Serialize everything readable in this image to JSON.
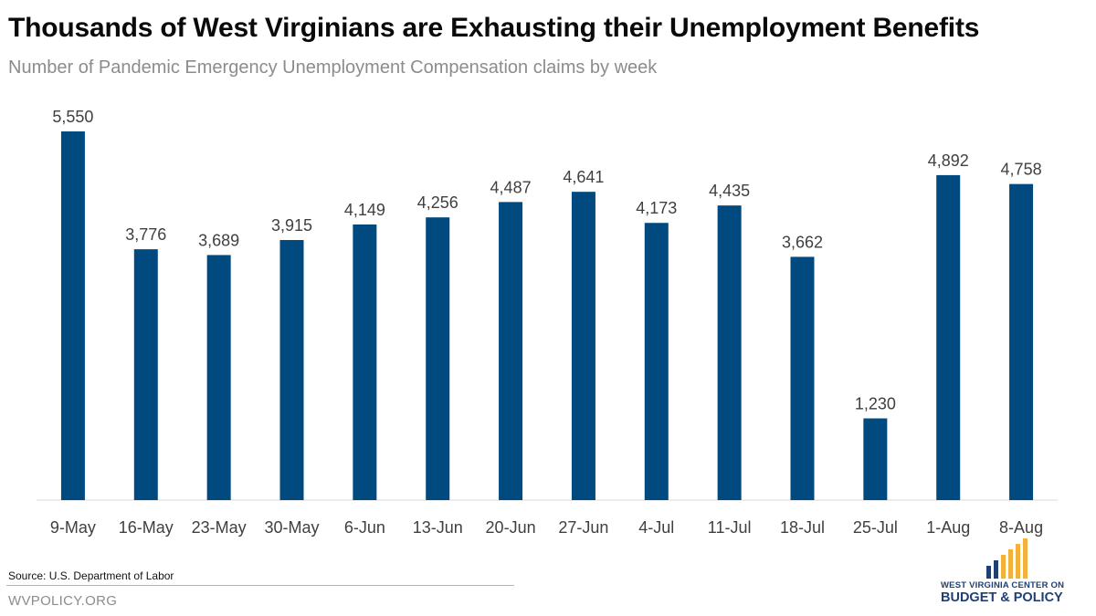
{
  "header": {
    "title": "Thousands of West Virginians are Exhausting their Unemployment Benefits",
    "subtitle": "Number of Pandemic Emergency Unemployment Compensation claims by week"
  },
  "footer": {
    "source": "Source: U.S. Department  of Labor",
    "site": "WVPOLICY.ORG"
  },
  "logo": {
    "line1": "WEST VIRGINIA CENTER ON",
    "line2": "BUDGET & POLICY",
    "colors": {
      "navy": "#1f3f72",
      "gold": "#f2b13a"
    }
  },
  "colors": {
    "bar": "#004a80",
    "axis": "#d9d9d9",
    "label": "#404040"
  },
  "chart_data": {
    "type": "bar",
    "title": "Thousands of West Virginians are Exhausting their Unemployment Benefits",
    "subtitle": "Number of Pandemic Emergency Unemployment Compensation claims by week",
    "xlabel": "",
    "ylabel": "",
    "categories": [
      "9-May",
      "16-May",
      "23-May",
      "30-May",
      "6-Jun",
      "13-Jun",
      "20-Jun",
      "27-Jun",
      "4-Jul",
      "11-Jul",
      "18-Jul",
      "25-Jul",
      "1-Aug",
      "8-Aug"
    ],
    "values": [
      5550,
      3776,
      3689,
      3915,
      4149,
      4256,
      4487,
      4641,
      4173,
      4435,
      3662,
      1230,
      4892,
      4758
    ],
    "data_labels": [
      "5,550",
      "3,776",
      "3,689",
      "3,915",
      "4,149",
      "4,256",
      "4,487",
      "4,641",
      "4,173",
      "4,435",
      "3,662",
      "1,230",
      "4,892",
      "4,758"
    ],
    "ylim": [
      0,
      6000
    ],
    "grid": false,
    "legend": "none"
  }
}
